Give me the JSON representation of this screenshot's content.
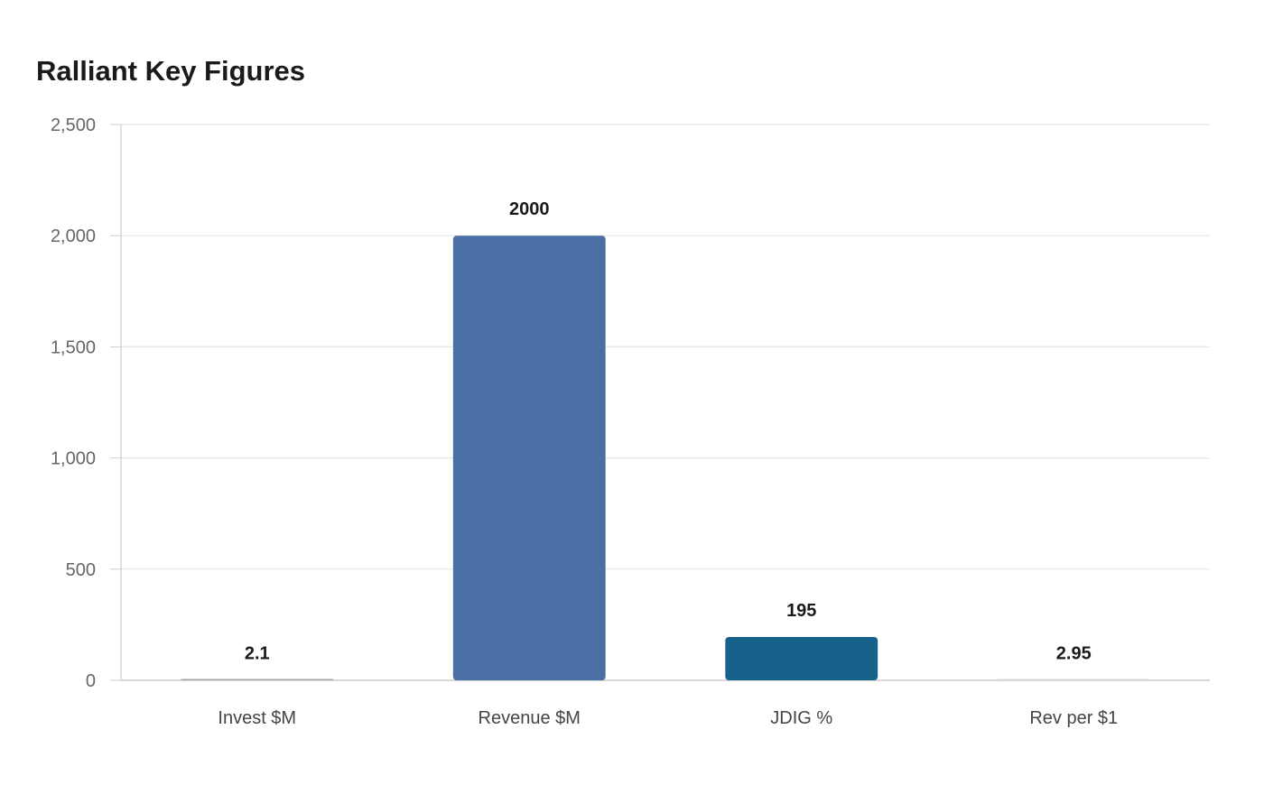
{
  "chart_data": {
    "type": "bar",
    "title": "Ralliant Key Figures",
    "categories": [
      "Invest $M",
      "Revenue $M",
      "JDIG %",
      "Rev per $1"
    ],
    "values": [
      2.1,
      2000,
      195,
      2.95
    ],
    "value_labels": [
      "2.1",
      "2000",
      "195",
      "2.95"
    ],
    "bar_colors": [
      "#a6a6a6",
      "#4a6fa5",
      "#17628a",
      "#d9d9d9"
    ],
    "xlabel": "",
    "ylabel": "",
    "ylim": [
      0,
      2500
    ],
    "y_ticks": [
      0,
      500,
      1000,
      1500,
      2000,
      2500
    ],
    "y_tick_labels": [
      "0",
      "500",
      "1,000",
      "1,500",
      "2,000",
      "2,500"
    ],
    "grid": true,
    "legend": "none"
  }
}
